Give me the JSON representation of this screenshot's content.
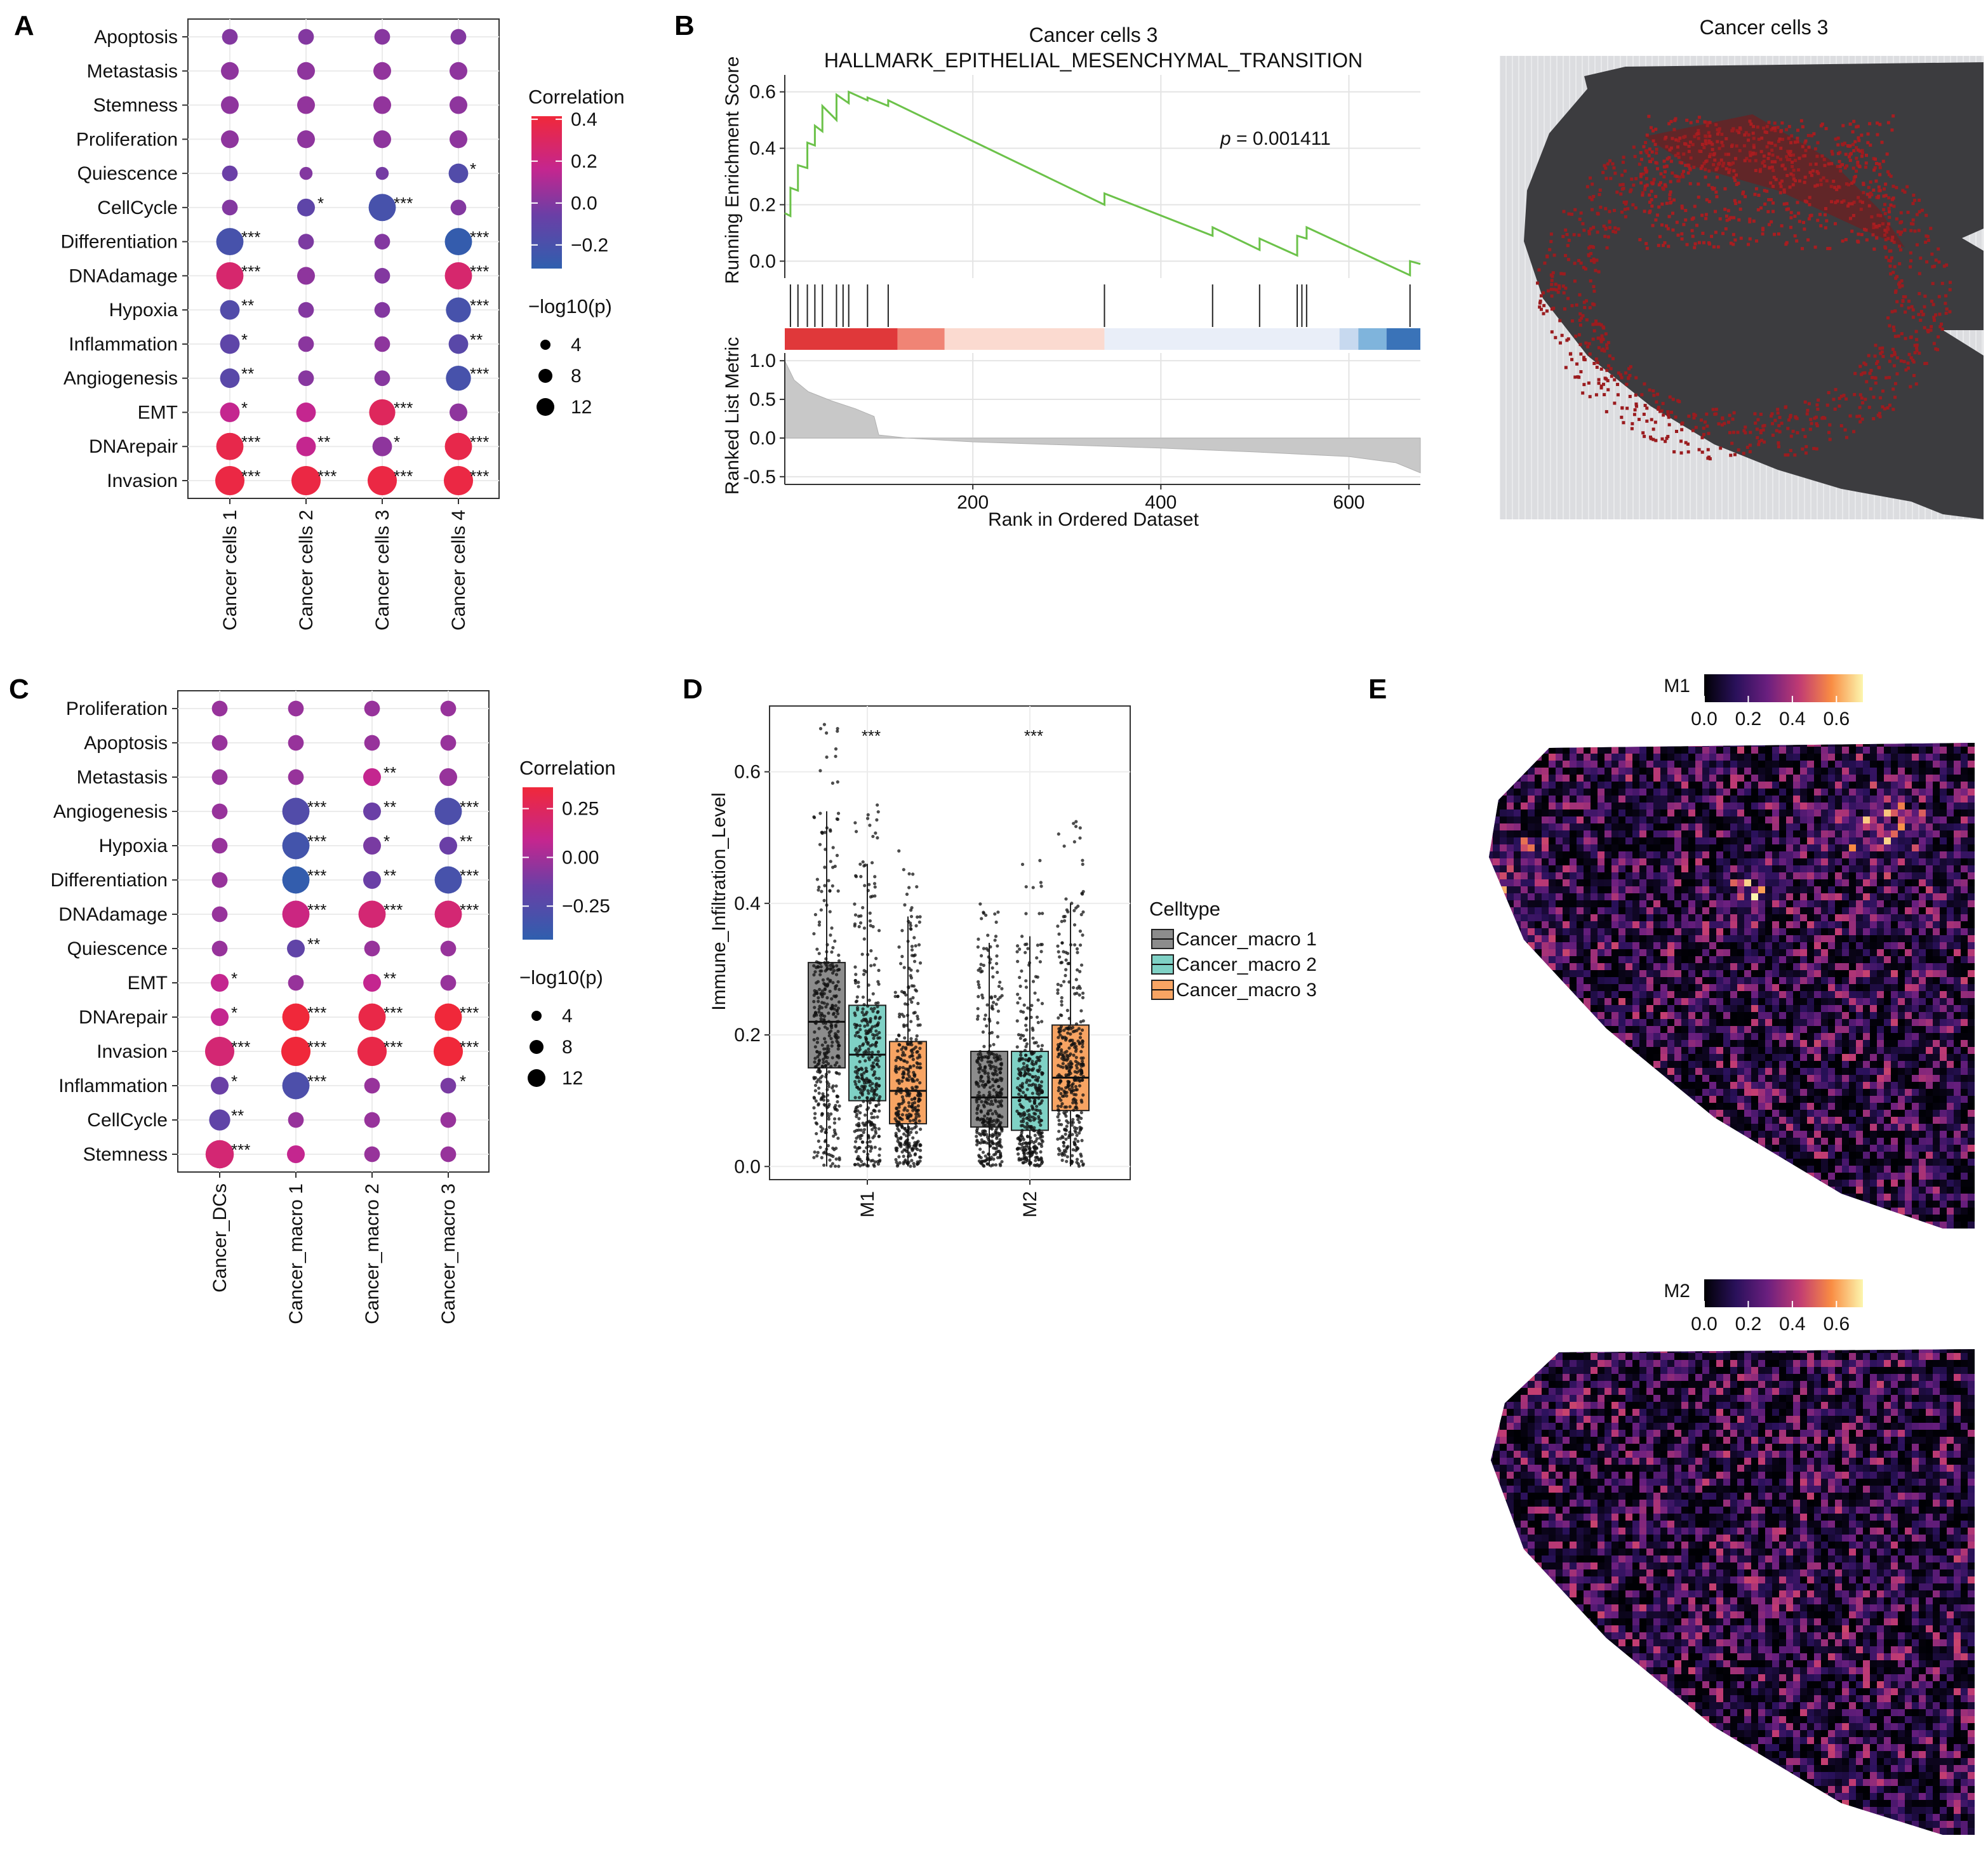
{
  "panels": {
    "A": {
      "label": "A"
    },
    "B": {
      "label": "B"
    },
    "C": {
      "label": "C"
    },
    "D": {
      "label": "D"
    },
    "E": {
      "label": "E"
    }
  },
  "chart_data": [
    {
      "id": "A",
      "type": "dotplot",
      "rows": [
        "Apoptosis",
        "Metastasis",
        "Stemness",
        "Proliferation",
        "Quiescence",
        "CellCycle",
        "Differentiation",
        "DNAdamage",
        "Hypoxia",
        "Inflammation",
        "Angiogenesis",
        "EMT",
        "DNArepair",
        "Invasion"
      ],
      "columns": [
        "Cancer cells 1",
        "Cancer cells 2",
        "Cancer cells 3",
        "Cancer cells 4"
      ],
      "correlation": [
        [
          0.02,
          0.02,
          0.03,
          0.02
        ],
        [
          0.05,
          0.05,
          0.06,
          0.05
        ],
        [
          0.05,
          0.06,
          0.06,
          0.05
        ],
        [
          0.05,
          0.05,
          0.05,
          0.05
        ],
        [
          -0.05,
          0.02,
          -0.02,
          -0.15
        ],
        [
          0.02,
          -0.1,
          -0.2,
          0.02
        ],
        [
          -0.2,
          0.0,
          0.02,
          -0.28
        ],
        [
          0.3,
          0.05,
          0.02,
          0.3
        ],
        [
          -0.15,
          0.02,
          0.02,
          -0.2
        ],
        [
          -0.1,
          0.04,
          0.05,
          -0.12
        ],
        [
          -0.12,
          0.03,
          0.03,
          -0.2
        ],
        [
          0.2,
          0.2,
          0.35,
          0.05
        ],
        [
          0.4,
          0.2,
          0.05,
          0.4
        ],
        [
          0.42,
          0.42,
          0.42,
          0.42
        ]
      ],
      "neglog10p": [
        [
          2,
          2,
          2,
          2
        ],
        [
          3,
          3,
          3,
          3
        ],
        [
          3,
          3,
          3,
          3
        ],
        [
          3,
          3,
          3,
          3
        ],
        [
          2,
          1,
          1,
          4
        ],
        [
          2,
          3,
          10,
          2
        ],
        [
          10,
          2,
          2,
          10
        ],
        [
          10,
          3,
          2,
          10
        ],
        [
          4,
          2,
          2,
          8
        ],
        [
          4,
          2,
          2,
          4
        ],
        [
          4,
          2,
          2,
          8
        ],
        [
          4,
          4,
          9,
          3
        ],
        [
          10,
          4,
          4,
          10
        ],
        [
          12,
          12,
          12,
          12
        ]
      ],
      "stars": [
        [
          "",
          "",
          "",
          ""
        ],
        [
          "",
          "",
          "",
          ""
        ],
        [
          "",
          "",
          "",
          ""
        ],
        [
          "",
          "",
          "",
          ""
        ],
        [
          "",
          "",
          "",
          "*"
        ],
        [
          "",
          "*",
          "***",
          ""
        ],
        [
          "***",
          "",
          "",
          "***"
        ],
        [
          "***",
          "",
          "",
          "***"
        ],
        [
          "**",
          "",
          "",
          "***"
        ],
        [
          "*",
          "",
          "",
          "**"
        ],
        [
          "**",
          "",
          "",
          "***"
        ],
        [
          "*",
          "",
          "***",
          ""
        ],
        [
          "***",
          "**",
          "*",
          "***"
        ],
        [
          "***",
          "***",
          "***",
          "***"
        ]
      ],
      "legend": {
        "color_title": "Correlation",
        "color_ticks": [
          "0.4",
          "0.2",
          "0.0",
          "−0.2"
        ],
        "color_range": [
          -0.3,
          0.45
        ],
        "size_title": "−log10(p)",
        "size_ticks": [
          "4",
          "8",
          "12"
        ]
      }
    },
    {
      "id": "B",
      "type": "line",
      "title_line1": "Cancer cells 3",
      "title_line2": "HALLMARK_EPITHELIAL_MESENCHYMAL_TRANSITION",
      "ylabel_top": "Running Enrichment Score",
      "ylabel_bottom": "Ranked List Metric",
      "xlabel": "Rank in Ordered Dataset",
      "pvalue_label": "p",
      "pvalue": "= 0.001411",
      "x_range": [
        0,
        676
      ],
      "x_ticks": [
        "200",
        "400",
        "600"
      ],
      "x_tick_values": [
        200,
        400,
        600
      ],
      "es_ylim": [
        -0.06,
        0.66
      ],
      "es_ticks": [
        "0.0",
        "0.2",
        "0.4",
        "0.6"
      ],
      "es_tick_values": [
        0.0,
        0.2,
        0.4,
        0.6
      ],
      "es_x": [
        0,
        6,
        6,
        14,
        14,
        24,
        24,
        32,
        32,
        40,
        40,
        55,
        55,
        68,
        68,
        88,
        88,
        110,
        110,
        340,
        340,
        455,
        455,
        505,
        505,
        545,
        545,
        555,
        555,
        665,
        665,
        676
      ],
      "es_y": [
        0.17,
        0.16,
        0.26,
        0.25,
        0.34,
        0.33,
        0.42,
        0.41,
        0.48,
        0.46,
        0.55,
        0.5,
        0.59,
        0.56,
        0.6,
        0.57,
        0.58,
        0.55,
        0.57,
        0.2,
        0.24,
        0.09,
        0.12,
        0.04,
        0.08,
        0.02,
        0.09,
        0.08,
        0.12,
        -0.05,
        0.0,
        -0.01
      ],
      "hits": [
        6,
        14,
        24,
        32,
        40,
        55,
        62,
        68,
        88,
        110,
        340,
        455,
        505,
        545,
        550,
        555,
        665
      ],
      "metric_ylim": [
        -0.6,
        1.1
      ],
      "metric_ticks": [
        "1.0",
        "0.5",
        "0.0",
        "-0.5"
      ],
      "metric_tick_values": [
        1.0,
        0.5,
        0.0,
        -0.5
      ],
      "metric_x": [
        0,
        10,
        25,
        50,
        75,
        95,
        100,
        130,
        200,
        300,
        400,
        500,
        600,
        650,
        676
      ],
      "metric_y": [
        1.0,
        0.75,
        0.6,
        0.48,
        0.38,
        0.28,
        0.04,
        0.0,
        -0.05,
        -0.09,
        -0.13,
        -0.18,
        -0.24,
        -0.32,
        -0.45
      ],
      "colorbar": [
        "#e0383a",
        "#f08475",
        "#fbdad0",
        "#e9eef8",
        "#c7d9ef",
        "#7fb4dc",
        "#3a73b8"
      ],
      "colorbar_breaks": [
        0,
        120,
        170,
        340,
        590,
        610,
        640,
        676
      ]
    },
    {
      "id": "B-map",
      "type": "heatmap",
      "title": "Cancer cells 3"
    },
    {
      "id": "C",
      "type": "dotplot",
      "rows": [
        "Proliferation",
        "Apoptosis",
        "Metastasis",
        "Angiogenesis",
        "Hypoxia",
        "Differentiation",
        "DNAdamage",
        "Quiescence",
        "EMT",
        "DNArepair",
        "Invasion",
        "Inflammation",
        "CellCycle",
        "Stemness"
      ],
      "columns": [
        "Cancer_DCs",
        "Cancer_macro 1",
        "Cancer_macro 2",
        "Cancer_macro 3"
      ],
      "correlation": [
        [
          0.05,
          0.05,
          0.05,
          0.05
        ],
        [
          0.05,
          0.05,
          0.05,
          0.05
        ],
        [
          0.05,
          0.05,
          0.2,
          0.05
        ],
        [
          0.05,
          -0.22,
          -0.1,
          -0.25
        ],
        [
          0.05,
          -0.3,
          -0.05,
          -0.1
        ],
        [
          0.05,
          -0.38,
          -0.1,
          -0.28
        ],
        [
          0.05,
          0.25,
          0.3,
          0.3
        ],
        [
          0.05,
          -0.15,
          0.05,
          0.05
        ],
        [
          0.2,
          0.05,
          0.2,
          0.05
        ],
        [
          0.2,
          0.5,
          0.45,
          0.5
        ],
        [
          0.3,
          0.5,
          0.45,
          0.5
        ],
        [
          -0.1,
          -0.25,
          0.05,
          -0.05
        ],
        [
          -0.15,
          0.05,
          0.05,
          0.05
        ],
        [
          0.3,
          0.2,
          0.05,
          0.05
        ]
      ],
      "neglog10p": [
        [
          2,
          2,
          2,
          2
        ],
        [
          2,
          2,
          2,
          2
        ],
        [
          2,
          2,
          3,
          3
        ],
        [
          2,
          10,
          3,
          10
        ],
        [
          2,
          10,
          3,
          3
        ],
        [
          2,
          10,
          3,
          10
        ],
        [
          2,
          10,
          10,
          10
        ],
        [
          2,
          3,
          2,
          2
        ],
        [
          3,
          2,
          3,
          2
        ],
        [
          3,
          10,
          10,
          10
        ],
        [
          12,
          12,
          12,
          12
        ],
        [
          3,
          10,
          2,
          2
        ],
        [
          5,
          2,
          2,
          2
        ],
        [
          11,
          3,
          2,
          2
        ]
      ],
      "stars": [
        [
          "",
          "",
          "",
          ""
        ],
        [
          "",
          "",
          "",
          ""
        ],
        [
          "",
          "",
          "**",
          ""
        ],
        [
          "",
          "***",
          "**",
          "***"
        ],
        [
          "",
          "***",
          "*",
          "**"
        ],
        [
          "",
          "***",
          "**",
          "***"
        ],
        [
          "",
          "***",
          "***",
          "***"
        ],
        [
          "",
          "**",
          "",
          ""
        ],
        [
          "*",
          "",
          "**",
          ""
        ],
        [
          "*",
          "***",
          "***",
          "***"
        ],
        [
          "***",
          "***",
          "***",
          "***"
        ],
        [
          "*",
          "***",
          "",
          "*"
        ],
        [
          "**",
          "",
          "",
          ""
        ],
        [
          "***",
          "",
          "",
          ""
        ]
      ],
      "legend": {
        "color_title": "Correlation",
        "color_ticks": [
          "0.25",
          "0.00",
          "−0.25"
        ],
        "color_range": [
          -0.4,
          0.5
        ],
        "size_title": "−log10(p)",
        "size_ticks": [
          "4",
          "8",
          "12"
        ]
      }
    },
    {
      "id": "D",
      "type": "boxplot",
      "ylabel": "Immune_Infiltration_Level",
      "groups": [
        "M1",
        "M2"
      ],
      "series": [
        "Cancer_macro 1",
        "Cancer_macro 2",
        "Cancer_macro 3"
      ],
      "series_colors": [
        "#8c8c8c",
        "#7fd1c5",
        "#f7a463"
      ],
      "ylim": [
        -0.02,
        0.7
      ],
      "y_ticks": [
        "0.0",
        "0.2",
        "0.4",
        "0.6"
      ],
      "y_tick_values": [
        0.0,
        0.2,
        0.4,
        0.6
      ],
      "stats": [
        [
          {
            "q1": 0.15,
            "median": 0.22,
            "q3": 0.31,
            "wlo": 0.0,
            "whi": 0.54,
            "max": 0.68
          },
          {
            "q1": 0.1,
            "median": 0.17,
            "q3": 0.245,
            "wlo": 0.0,
            "whi": 0.46,
            "max": 0.56
          },
          {
            "q1": 0.065,
            "median": 0.115,
            "q3": 0.19,
            "wlo": 0.0,
            "whi": 0.38,
            "max": 0.5
          }
        ],
        [
          {
            "q1": 0.06,
            "median": 0.105,
            "q3": 0.175,
            "wlo": 0.0,
            "whi": 0.34,
            "max": 0.4
          },
          {
            "q1": 0.055,
            "median": 0.105,
            "q3": 0.175,
            "wlo": 0.0,
            "whi": 0.35,
            "max": 0.47
          },
          {
            "q1": 0.085,
            "median": 0.135,
            "q3": 0.215,
            "wlo": 0.0,
            "whi": 0.4,
            "max": 0.53
          }
        ]
      ],
      "significance": [
        "***",
        "***"
      ],
      "legend_title": "Celltype"
    },
    {
      "id": "E-M1",
      "type": "heatmap",
      "legend_title": "M1",
      "ticks": [
        "0.0",
        "0.2",
        "0.4",
        "0.6"
      ],
      "tick_values": [
        0.0,
        0.2,
        0.4,
        0.6
      ],
      "range": [
        0.0,
        0.72
      ]
    },
    {
      "id": "E-M2",
      "type": "heatmap",
      "legend_title": "M2",
      "ticks": [
        "0.0",
        "0.2",
        "0.4",
        "0.6"
      ],
      "tick_values": [
        0.0,
        0.2,
        0.4,
        0.6
      ],
      "range": [
        0.0,
        0.72
      ]
    }
  ]
}
